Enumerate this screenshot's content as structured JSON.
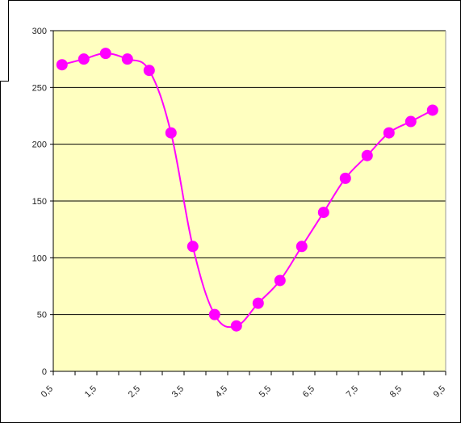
{
  "chart_data": {
    "type": "line",
    "title": "",
    "xlabel": "",
    "ylabel": "",
    "x_ticks": [
      "0,5",
      "1,5",
      "2,5",
      "3,5",
      "4,5",
      "5,5",
      "6,5",
      "7,5",
      "8,5",
      "9,5"
    ],
    "x_tick_values": [
      0.5,
      1.5,
      2.5,
      3.5,
      4.5,
      5.5,
      6.5,
      7.5,
      8.5,
      9.5
    ],
    "y_ticks": [
      "0",
      "50",
      "100",
      "150",
      "200",
      "250",
      "300"
    ],
    "xlim": [
      0.5,
      9.5
    ],
    "ylim": [
      0,
      300
    ],
    "grid": true,
    "legend": "none",
    "series": [
      {
        "x": [
          0.7,
          1.2,
          1.7,
          2.2,
          2.7,
          3.2,
          3.7,
          4.2,
          4.7,
          5.2,
          5.7,
          6.2,
          6.7,
          7.2,
          7.7,
          8.2,
          8.7,
          9.2
        ],
        "values": [
          270,
          275,
          280,
          275,
          265,
          210,
          110,
          50,
          40,
          60,
          80,
          110,
          140,
          170,
          190,
          210,
          220,
          230
        ]
      }
    ],
    "colors": {
      "plot_background": "#ffffc0",
      "line": "#ff00ff",
      "marker": "#ff00ff",
      "gridline": "#000000"
    }
  }
}
